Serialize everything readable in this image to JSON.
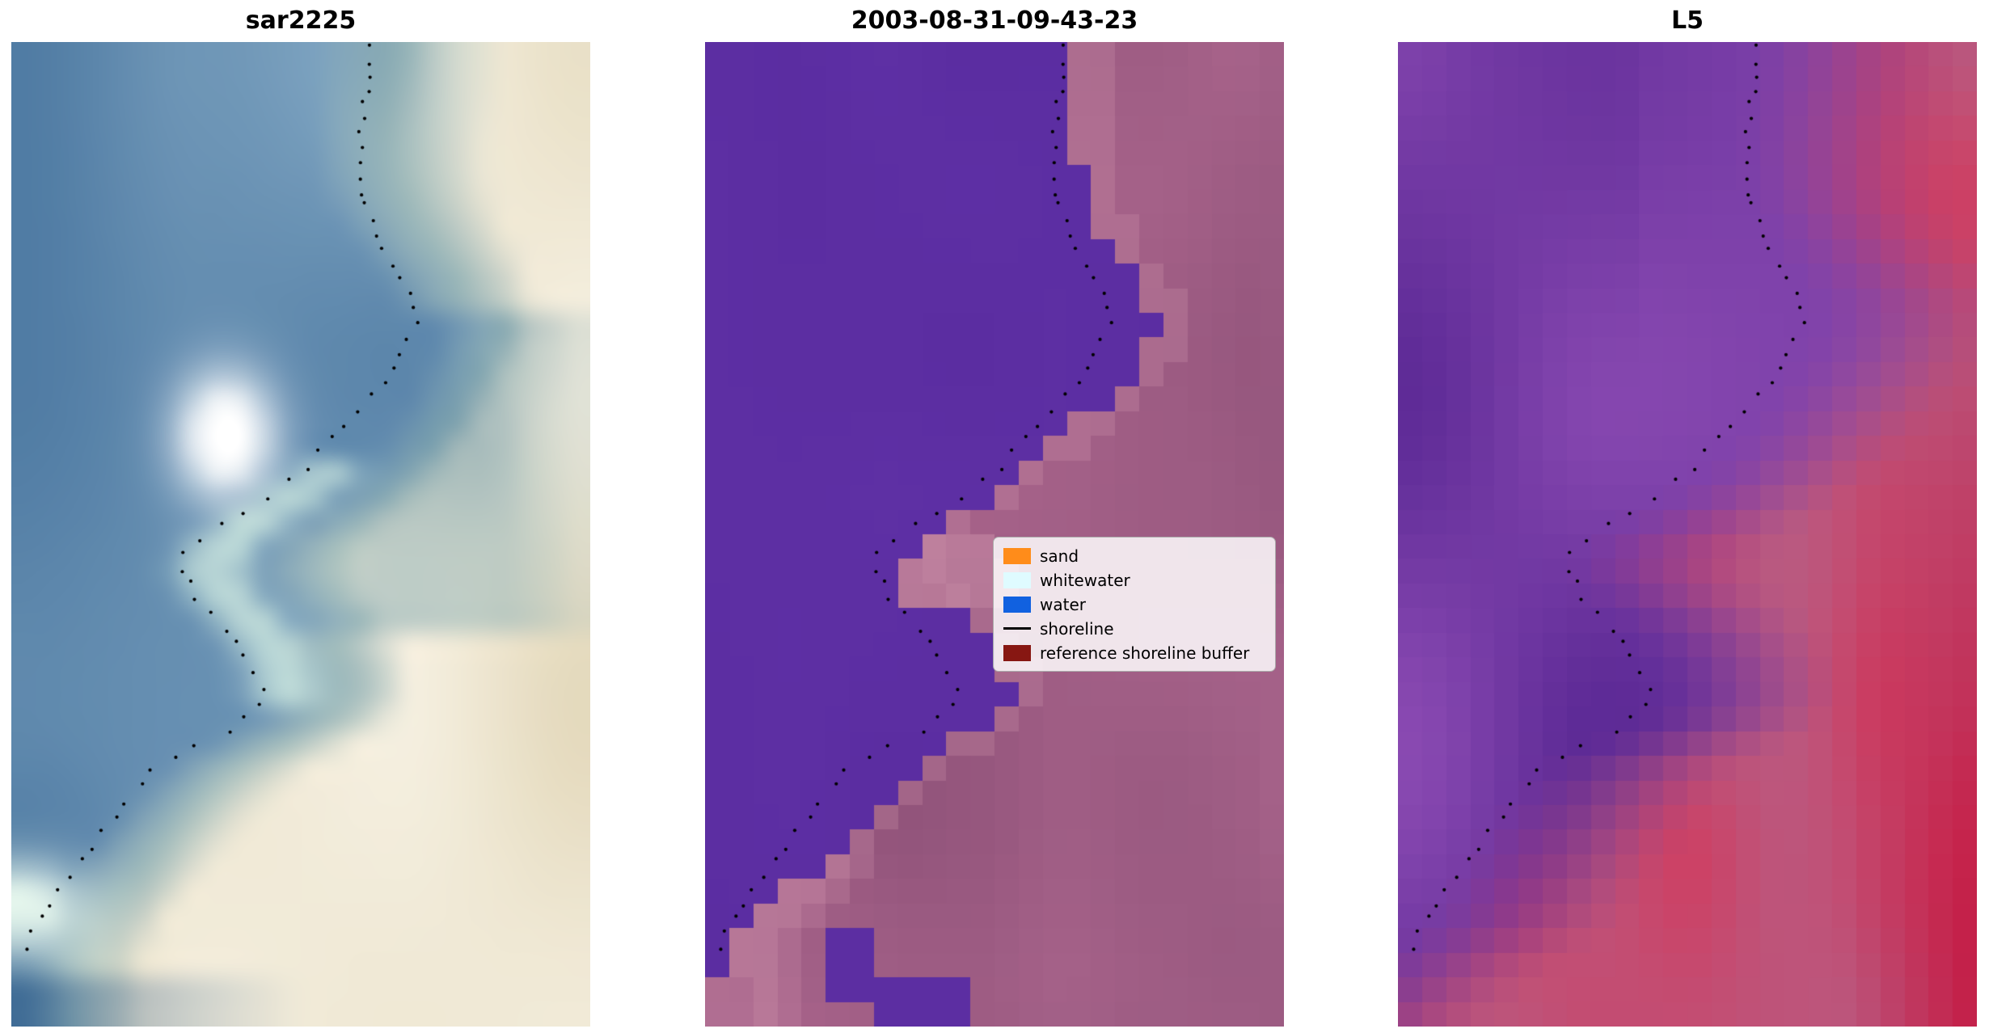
{
  "page": {
    "background": "#ffffff"
  },
  "chart_data": {
    "type": "heatmap",
    "description": "Three co-registered coastal image tiles (SAR, classified output, Landsat 5) with detected shoreline points plotted as black dots and a classification legend",
    "legend_position": "center-right of middle panel",
    "grid": false,
    "panels": [
      {
        "title": "sar2225",
        "kind": "sar_rgb",
        "palette": {
          "water_dark": "#3d6b98",
          "water_light": "#7da3c0",
          "teal_dark": "#6d97a8",
          "teal_light": "#b7cbc4",
          "sand_dark": "#e3d8ba",
          "sand_light": "#f7f2e4",
          "whitewater": "#ffffff",
          "cyan": "#d9f2e4",
          "mint": "#e9f9ef",
          "deep": "#2e5c8b"
        }
      },
      {
        "title": "2003-08-31-09-43-23",
        "kind": "classified",
        "palette": {
          "water": "#5b2da1",
          "land_dark": "#8f5279",
          "land_light": "#b26b92",
          "salmon": "#cb8fa8"
        }
      },
      {
        "title": "L5",
        "kind": "false_color",
        "palette": {
          "purple_dark": "#5e2b97",
          "purple_light": "#8a4ab2",
          "pink_dark": "#b75e85",
          "pink_light": "#cd4165",
          "crimson": "#c41e47"
        }
      }
    ],
    "legend": {
      "entries": [
        {
          "label": "sand",
          "color": "#ff8c1a",
          "kind": "patch"
        },
        {
          "label": "whitewater",
          "color": "#dffbff",
          "kind": "patch"
        },
        {
          "label": "water",
          "color": "#1161e0",
          "kind": "patch"
        },
        {
          "label": "shoreline",
          "color": "#000000",
          "kind": "line"
        },
        {
          "label": "reference shoreline buffer",
          "color": "#871712",
          "kind": "patch"
        }
      ]
    },
    "shoreline_path": [
      [
        0.62,
        0.0
      ],
      [
        0.612,
        0.045
      ],
      [
        0.601,
        0.09
      ],
      [
        0.597,
        0.13
      ],
      [
        0.611,
        0.17
      ],
      [
        0.64,
        0.205
      ],
      [
        0.677,
        0.24
      ],
      [
        0.7,
        0.27
      ],
      [
        0.688,
        0.305
      ],
      [
        0.65,
        0.34
      ],
      [
        0.605,
        0.372
      ],
      [
        0.557,
        0.405
      ],
      [
        0.503,
        0.435
      ],
      [
        0.44,
        0.462
      ],
      [
        0.373,
        0.487
      ],
      [
        0.315,
        0.51
      ],
      [
        0.292,
        0.532
      ],
      [
        0.308,
        0.556
      ],
      [
        0.345,
        0.578
      ],
      [
        0.385,
        0.6
      ],
      [
        0.408,
        0.625
      ],
      [
        0.43,
        0.652
      ],
      [
        0.42,
        0.676
      ],
      [
        0.373,
        0.698
      ],
      [
        0.31,
        0.717
      ],
      [
        0.255,
        0.737
      ],
      [
        0.215,
        0.76
      ],
      [
        0.18,
        0.785
      ],
      [
        0.148,
        0.81
      ],
      [
        0.118,
        0.835
      ],
      [
        0.088,
        0.858
      ],
      [
        0.06,
        0.88
      ],
      [
        0.038,
        0.9
      ],
      [
        0.02,
        0.922
      ]
    ]
  }
}
